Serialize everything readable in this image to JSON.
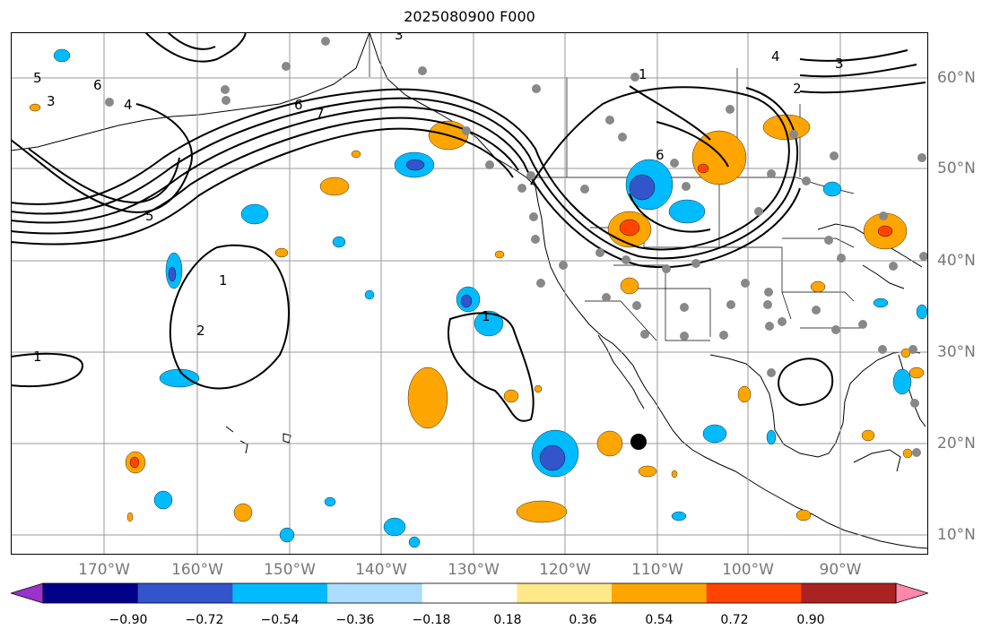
{
  "title": "2025080900 F000",
  "lon_labels": [
    "170°W",
    "160°W",
    "150°W",
    "140°W",
    "130°W",
    "120°W",
    "110°W",
    "100°W",
    "90°W"
  ],
  "lat_labels": [
    "60°N",
    "50°N",
    "40°N",
    "30°N",
    "20°N",
    "10°N"
  ],
  "colorbar": {
    "ticks": [
      "−0.90",
      "−0.72",
      "−0.54",
      "−0.36",
      "−0.18",
      "0.18",
      "0.36",
      "0.54",
      "0.72",
      "0.90"
    ],
    "colors": [
      "#9933cc",
      "#000088",
      "#3355cc",
      "#00bbff",
      "#aaddff",
      "#ffffff",
      "#ffe888",
      "#ffa500",
      "#ff4400",
      "#aa2222",
      "#ff88aa"
    ]
  },
  "contour_labels": [
    "1",
    "1",
    "1",
    "1",
    "2",
    "2",
    "3",
    "3",
    "3",
    "4",
    "4",
    "5",
    "5",
    "6",
    "6",
    "6",
    "7"
  ],
  "colors": {
    "ocean": "#ffffff",
    "grid": "#9a9a9a",
    "station": "#888888",
    "contour": "#000000",
    "label_text": "#777777"
  }
}
